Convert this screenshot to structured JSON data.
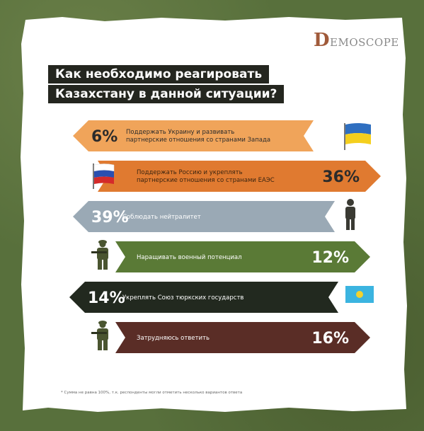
{
  "logo": {
    "letter": "D",
    "rest": "EMOSCOPE"
  },
  "header": {
    "title_line1": "Как необходимо реагировать",
    "title_line2": "Казахстану в данной ситуации?"
  },
  "footnote": "* Сумма не равна 100%, т.к. респонденты могли отметить несколько вариантов ответа",
  "colors": {
    "orange_light": "#f0a45a",
    "orange_dark": "#e07a30",
    "gray_blue": "#9aa9b5",
    "olive": "#5a7a36",
    "black": "#22291f",
    "brown": "#5a2d26"
  },
  "chart_data": {
    "type": "bar",
    "title": "Как необходимо реагировать Казахстану в данной ситуации?",
    "unit": "%",
    "categories": [
      "Поддержать Украину и развивать партнерские отношения со странами Запада",
      "Поддержать Россию и укреплять партнерские отношения со странами ЕАЭС",
      "Соблюдать нейтралитет",
      "Наращивать военный потенциал",
      "Укреплять Союз тюркских государств",
      "Затрудняюсь ответить"
    ],
    "values": [
      6,
      36,
      39,
      12,
      14,
      16
    ],
    "value_labels": [
      "6%",
      "36%",
      "39%",
      "12%",
      "14%",
      "16%"
    ],
    "icons": [
      "ukraine-flag-icon",
      "russia-flag-icon",
      "person-icon",
      "soldier-icon",
      "kazakhstan-flag-icon",
      "soldier-icon"
    ]
  }
}
